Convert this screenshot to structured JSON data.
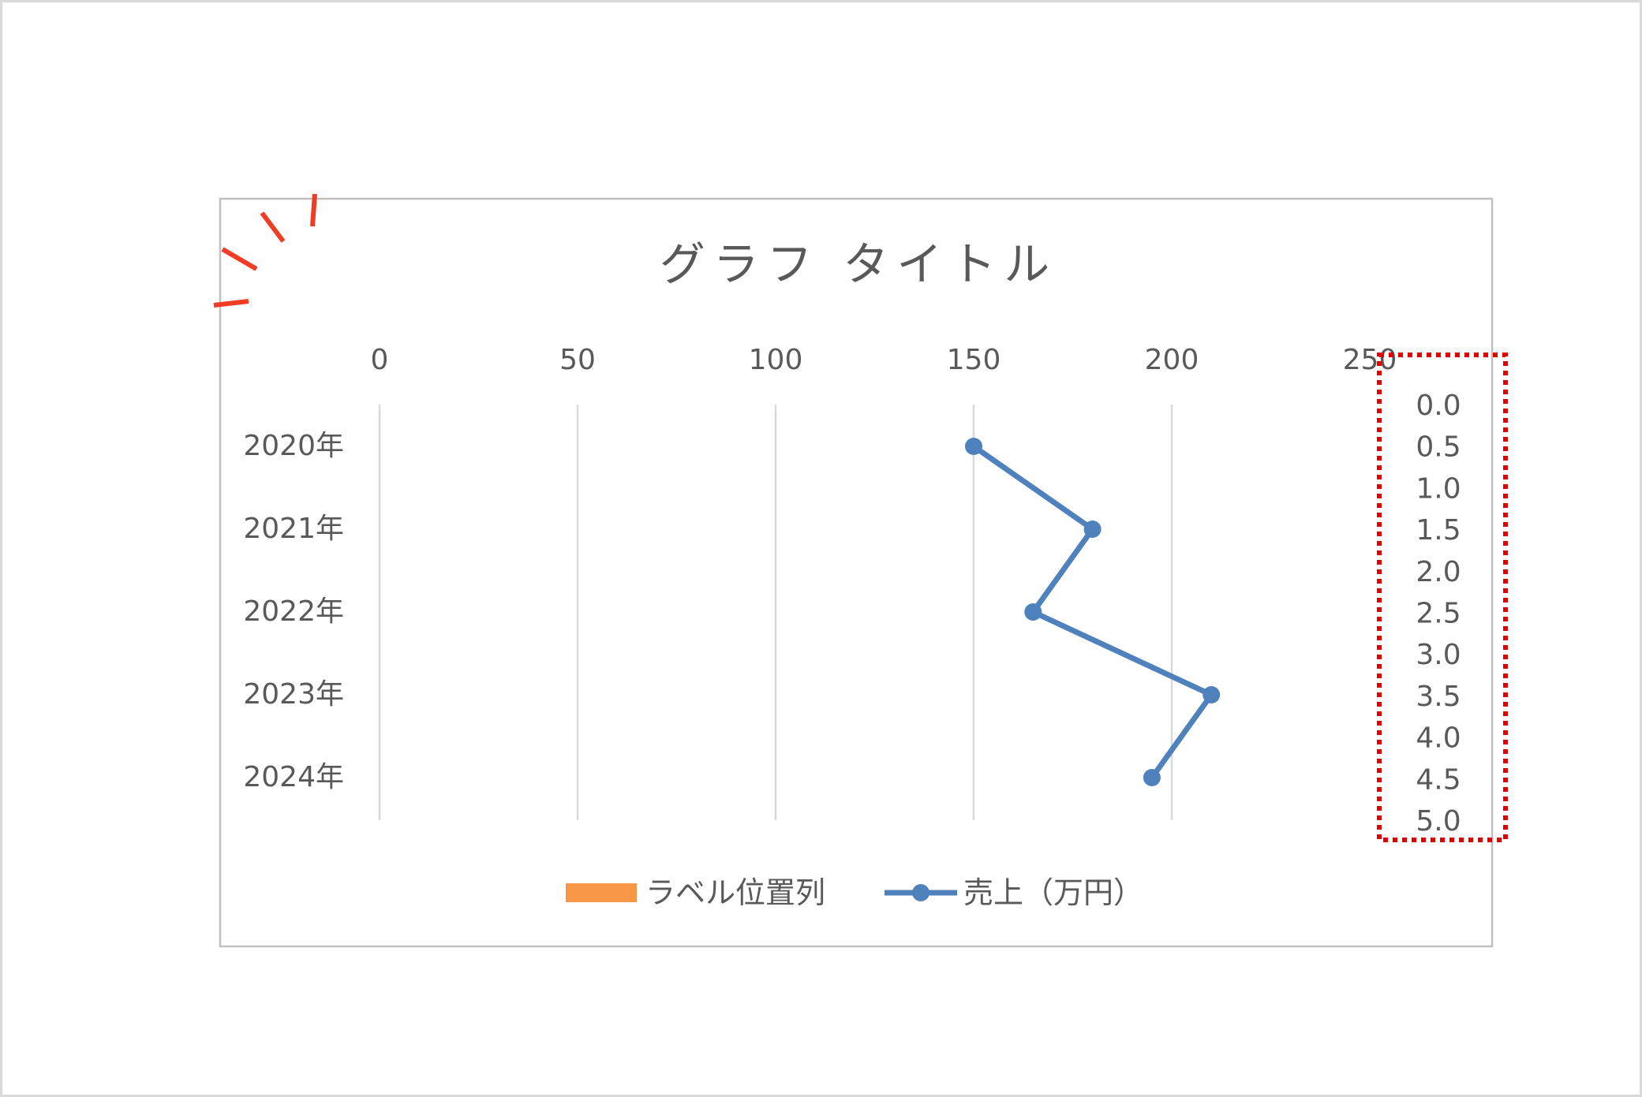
{
  "chart_data": {
    "type": "line",
    "orientation": "horizontal-value-axis",
    "title": "グラフ タイトル",
    "value_axis": {
      "position": "top",
      "min": 0,
      "max": 250,
      "ticks": [
        0,
        50,
        100,
        150,
        200,
        250
      ],
      "tick_labels": [
        "0",
        "50",
        "100",
        "150",
        "200",
        "250"
      ],
      "grid": true
    },
    "categories": [
      "2020年",
      "2021年",
      "2022年",
      "2023年",
      "2024年"
    ],
    "secondary_axis": {
      "position": "right",
      "min": 0.0,
      "max": 5.0,
      "tick_labels": [
        "0.0",
        "0.5",
        "1.0",
        "1.5",
        "2.0",
        "2.5",
        "3.0",
        "3.5",
        "4.0",
        "4.5",
        "5.0"
      ],
      "highlighted": true
    },
    "series": [
      {
        "name": "ラベル位置列",
        "type": "bar",
        "color": "#F79646",
        "values": [
          0,
          0,
          0,
          0,
          0
        ]
      },
      {
        "name": "売上（万円）",
        "type": "line",
        "color": "#4F81BD",
        "marker": "circle",
        "values": [
          150,
          180,
          165,
          210,
          195
        ]
      }
    ],
    "legend": {
      "placement": "bottom"
    }
  },
  "annotations": {
    "highlight_box_color": "#E00000",
    "sparkle_color": "#F03C24"
  }
}
